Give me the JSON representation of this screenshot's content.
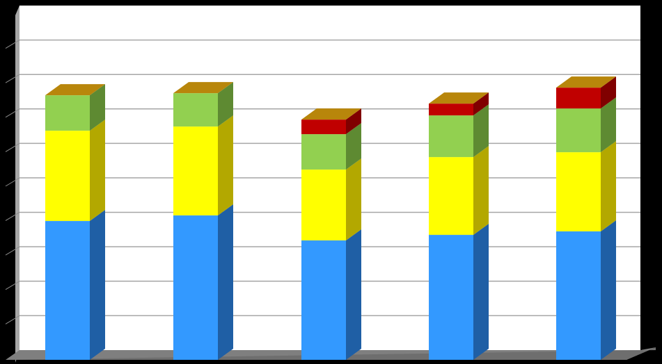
{
  "chart_data": {
    "type": "bar",
    "stacked": true,
    "three_d": true,
    "categories": [
      "",
      "",
      "",
      "",
      ""
    ],
    "series": [
      {
        "values": [
          200,
          208,
          172,
          180,
          185
        ],
        "color": "#3399FF",
        "side_color": "#1F5FA5"
      },
      {
        "values": [
          130,
          128,
          102,
          112,
          114
        ],
        "color": "#FFFF00",
        "side_color": "#B3A800"
      },
      {
        "values": [
          51,
          48,
          51,
          60,
          63
        ],
        "color": "#92D050",
        "side_color": "#5E8A32"
      },
      {
        "values": [
          0,
          0,
          21,
          17,
          30
        ],
        "color": "#C00000",
        "side_color": "#800000"
      }
    ],
    "top_cap_color": "#B8860B",
    "ylim": [
      0,
      500
    ],
    "y_gridline_step": 50,
    "grid": true,
    "legend": "none",
    "background": "#000000",
    "plot_background": "#FFFFFF",
    "floor_color": "#7F7F7F"
  }
}
